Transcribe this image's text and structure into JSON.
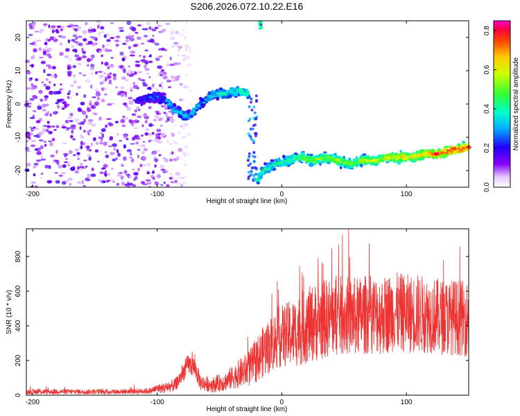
{
  "title": "S206.2026.072.10.22.E16",
  "chart_data": [
    {
      "type": "heatmap",
      "title": "S206.2026.072.10.22.E16",
      "xlabel": "Height of straight line (km)",
      "ylabel": "Frequency (Hz)",
      "xlim": [
        -205,
        150
      ],
      "ylim": [
        -25,
        25
      ],
      "xticks": [
        -200,
        -100,
        0,
        100
      ],
      "yticks": [
        -20,
        -10,
        0,
        10,
        20
      ],
      "colorbar": {
        "label": "Normalized spectral amplitude",
        "range": [
          0.0,
          0.85
        ],
        "ticks": [
          0.0,
          0.2,
          0.4,
          0.6,
          0.8
        ]
      },
      "ridge": {
        "x": [
          -115,
          -105,
          -95,
          -85,
          -75,
          -65,
          -55,
          -45,
          -35,
          -27,
          -20,
          -15,
          -5,
          5,
          15,
          25,
          35,
          45,
          55,
          65,
          75,
          85,
          95,
          105,
          115,
          125,
          135,
          150
        ],
        "freq": [
          1,
          2,
          2,
          -2,
          -4,
          0,
          3,
          3,
          4,
          3,
          -23,
          -20,
          -18,
          -17,
          -16,
          -17,
          -16,
          -17,
          -18,
          -17,
          -17,
          -16,
          -16,
          -16,
          -15,
          -15,
          -14,
          -13
        ],
        "amplitude": [
          0.2,
          0.25,
          0.25,
          0.35,
          0.35,
          0.3,
          0.35,
          0.4,
          0.4,
          0.45,
          0.45,
          0.4,
          0.4,
          0.45,
          0.5,
          0.55,
          0.5,
          0.55,
          0.55,
          0.55,
          0.6,
          0.6,
          0.65,
          0.65,
          0.7,
          0.75,
          0.8,
          0.8
        ]
      },
      "noise_region_x": [
        -205,
        -95
      ],
      "noise_amplitude": 0.15
    },
    {
      "type": "line",
      "xlabel": "Height of straight line (km)",
      "ylabel": "SNR (10 * v/v)",
      "xlim": [
        -205,
        150
      ],
      "ylim": [
        0,
        960
      ],
      "xticks": [
        -200,
        -100,
        0,
        100
      ],
      "yticks": [
        0,
        200,
        400,
        600,
        800
      ],
      "color": "#ee3333",
      "series": [
        {
          "name": "SNR",
          "x": [
            -205,
            -180,
            -160,
            -140,
            -120,
            -105,
            -100,
            -95,
            -85,
            -75,
            -70,
            -65,
            -55,
            -45,
            -35,
            -25,
            -15,
            -5,
            0,
            10,
            20,
            30,
            40,
            50,
            60,
            70,
            80,
            90,
            100,
            110,
            120,
            130,
            140,
            150
          ],
          "values": [
            20,
            20,
            20,
            20,
            22,
            25,
            40,
            40,
            60,
            180,
            160,
            70,
            60,
            80,
            120,
            160,
            250,
            320,
            340,
            360,
            400,
            430,
            450,
            460,
            450,
            470,
            460,
            480,
            470,
            470,
            460,
            450,
            450,
            440
          ],
          "spread": [
            15,
            15,
            15,
            15,
            15,
            18,
            25,
            30,
            40,
            60,
            60,
            45,
            45,
            55,
            80,
            110,
            150,
            170,
            180,
            200,
            220,
            230,
            230,
            230,
            230,
            230,
            230,
            230,
            230,
            230,
            220,
            220,
            220,
            220
          ]
        }
      ]
    }
  ]
}
